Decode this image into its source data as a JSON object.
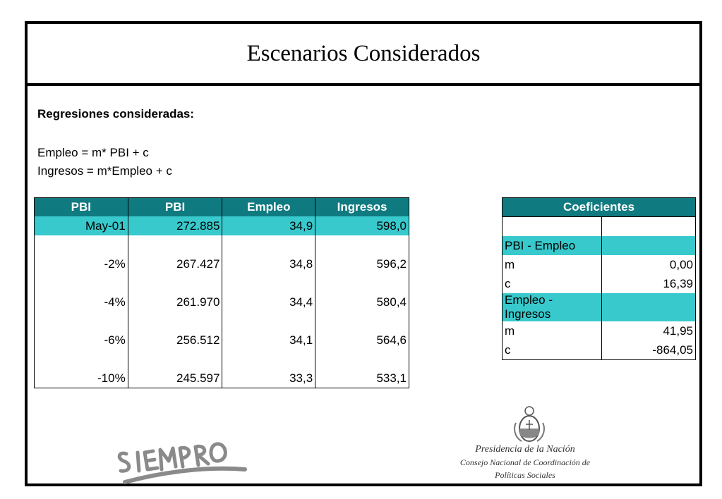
{
  "title": "Escenarios Considerados",
  "subtitle": "Regresiones consideradas:",
  "equations": [
    "Empleo = m* PBI + c",
    "Ingresos = m*Empleo + c"
  ],
  "main_table": {
    "headers": [
      "PBI",
      "PBI",
      "Empleo",
      "Ingresos"
    ],
    "rows": [
      [
        "May-01",
        "272.885",
        "34,9",
        "598,0"
      ],
      [
        "",
        "",
        "",
        ""
      ],
      [
        "-2%",
        "267.427",
        "34,8",
        "596,2"
      ],
      [
        "",
        "",
        "",
        ""
      ],
      [
        "-4%",
        "261.970",
        "34,4",
        "580,4"
      ],
      [
        "",
        "",
        "",
        ""
      ],
      [
        "-6%",
        "256.512",
        "34,1",
        "564,6"
      ],
      [
        "",
        "",
        "",
        ""
      ],
      [
        "-10%",
        "245.597",
        "33,3",
        "533,1"
      ]
    ]
  },
  "coef_table": {
    "header": "Coeficientes",
    "section1": "PBI - Empleo",
    "s1_m_label": "m",
    "s1_m_value": "0,00",
    "s1_c_label": "c",
    "s1_c_value": "16,39",
    "section2": "Empleo - Ingresos",
    "s2_m_label": "m",
    "s2_m_value": "41,95",
    "s2_c_label": "c",
    "s2_c_value": "-864,05"
  },
  "logos": {
    "siempro": "SIEMPRO",
    "inst_line1": "Presidencia de la Nación",
    "inst_line2": "Consejo Nacional de Coordinación de",
    "inst_line3": "Políticas Sociales"
  },
  "colors": {
    "header_bg": "#0f7a80",
    "highlight": "#38c9cc"
  }
}
